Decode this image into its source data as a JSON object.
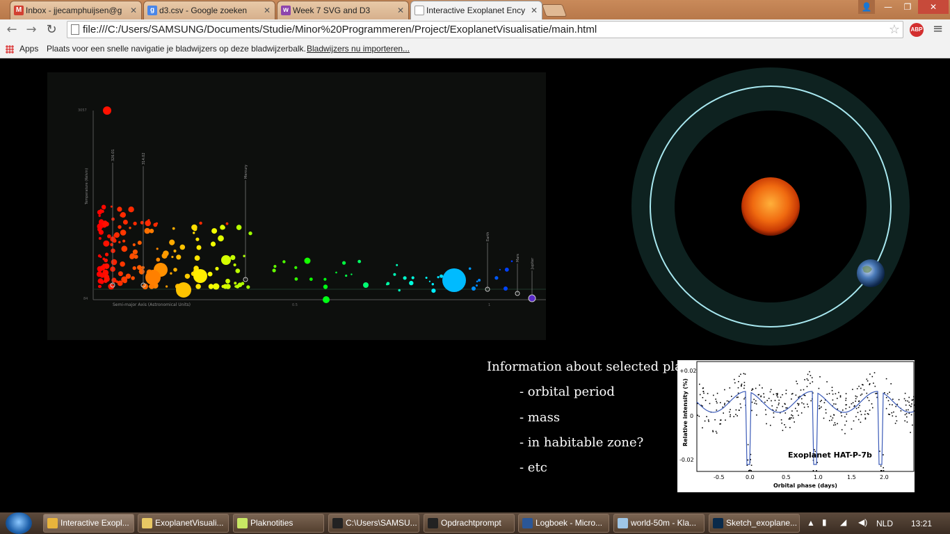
{
  "tabs": [
    {
      "label": "Inbox - jjecamphuijsen@g",
      "icon": "gmail-icon",
      "color": "#d23f31",
      "glyph": "M"
    },
    {
      "label": "d3.csv - Google zoeken",
      "icon": "google-icon",
      "color": "#4a86e8",
      "glyph": "g"
    },
    {
      "label": "Week 7 SVG and D3",
      "icon": "course-icon",
      "color": "#8e44ad",
      "glyph": "w"
    },
    {
      "label": "Interactive Exoplanet Ency",
      "icon": "document-icon",
      "color": "#888888",
      "glyph": ""
    }
  ],
  "toolbar": {
    "url": "file:///C:/Users/SAMSUNG/Documents/Studie/Minor%20Programmeren/Project/ExoplanetVisualisatie/main.html",
    "abp_label": "ABP"
  },
  "bookmarks": {
    "apps_label": "Apps",
    "hint": "Plaats voor een snelle navigatie je bladwijzers op deze bladwijzerbalk.",
    "import_link": "Bladwijzers nu importeren..."
  },
  "info": {
    "heading": "Information about selected planet",
    "items": [
      "- orbital period",
      "- mass",
      "- in habitable zone?",
      "- etc"
    ]
  },
  "scatter": {
    "ylabel": "Temperature (Kelvin)",
    "xlabel": "Semi-major Axis (Astronomical Units)",
    "y_top_tick": "3057",
    "y_bottom_tick": "84",
    "x_mid_tick": "0.5",
    "x_right_tick": "1",
    "markers": [
      "326.01",
      "314.02",
      "Mercury",
      "Earth",
      "Mars",
      "Jupiter"
    ]
  },
  "lightcurve": {
    "title": "Exoplanet HAT-P-7b",
    "ylabel": "Relative intensity (%)",
    "xlabel": "Orbital phase (days)",
    "yticks": [
      "+0.02",
      "0",
      "-0.02"
    ],
    "xticks": [
      "-0.5",
      "0.0",
      "0.5",
      "1.0",
      "1.5",
      "2.0"
    ]
  },
  "taskbar": {
    "items": [
      {
        "label": "Interactive Exopl...",
        "icon": "chrome-icon",
        "color": "#e8b43c"
      },
      {
        "label": "ExoplanetVisuali...",
        "icon": "folder-icon",
        "color": "#e8c864"
      },
      {
        "label": "Plaknotities",
        "icon": "sticky-notes-icon",
        "color": "#c8e864"
      },
      {
        "label": "C:\\Users\\SAMSU...",
        "icon": "terminal-icon",
        "color": "#222222"
      },
      {
        "label": "Opdrachtprompt",
        "icon": "cmd-icon",
        "color": "#222222"
      },
      {
        "label": "Logboek - Micro...",
        "icon": "word-icon",
        "color": "#2b5797"
      },
      {
        "label": "world-50m - Kla...",
        "icon": "notepad-icon",
        "color": "#9fc6e6"
      },
      {
        "label": "Sketch_exoplane...",
        "icon": "photoshop-icon",
        "color": "#0a2a4a"
      }
    ],
    "language": "NLD",
    "time": "13:21"
  }
}
